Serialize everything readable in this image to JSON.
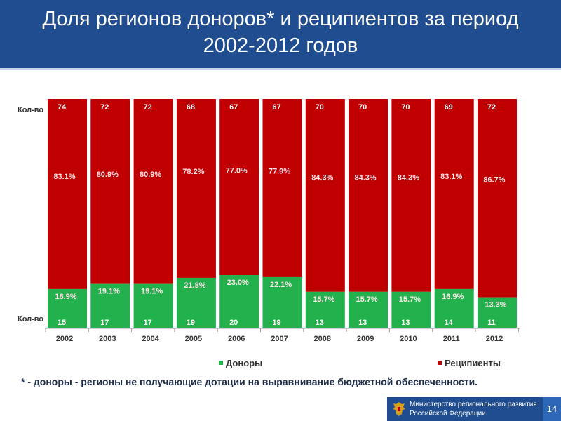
{
  "slide": {
    "title_line1": "Доля регионов доноров* и реципиентов за период",
    "title_line2": "2002-2012 годов",
    "count_label_top": "Кол-во",
    "count_label_bottom": "Кол-во",
    "footnote": "* - доноры - регионы не получающие дотации на выравнивание бюджетной обеспеченности.",
    "ministry_line1": "Министерство регионального развития",
    "ministry_line2": "Российской Федерации",
    "page_number": "14"
  },
  "colors": {
    "header_bg": "#1f4d8f",
    "donors": "#22b14c",
    "recipients": "#c00000",
    "label_text": "#ffe6ec"
  },
  "chart_data": {
    "type": "bar",
    "stacked": true,
    "categories": [
      "2002",
      "2003",
      "2004",
      "2005",
      "2006",
      "2007",
      "2008",
      "2009",
      "2010",
      "2011",
      "2012"
    ],
    "series": [
      {
        "name": "Доноры",
        "values": [
          16.9,
          19.1,
          19.1,
          21.8,
          23.0,
          22.1,
          15.7,
          15.7,
          15.7,
          16.9,
          13.3
        ],
        "labels": [
          "16.9%",
          "19.1%",
          "19.1%",
          "21.8%",
          "23.0%",
          "22.1%",
          "15.7%",
          "15.7%",
          "15.7%",
          "16.9%",
          "13.3%"
        ],
        "counts": [
          "15",
          "17",
          "17",
          "19",
          "20",
          "19",
          "13",
          "13",
          "13",
          "14",
          "11"
        ]
      },
      {
        "name": "Реципиенты",
        "values": [
          83.1,
          80.9,
          80.9,
          78.2,
          77.0,
          77.9,
          84.3,
          84.3,
          84.3,
          83.1,
          86.7
        ],
        "labels": [
          "83.1%",
          "80.9%",
          "80.9%",
          "78.2%",
          "77.0%",
          "77.9%",
          "84.3%",
          "84.3%",
          "84.3%",
          "83.1%",
          "86.7%"
        ],
        "counts": [
          "74",
          "72",
          "72",
          "68",
          "67",
          "67",
          "70",
          "70",
          "70",
          "69",
          "72"
        ]
      }
    ],
    "ylim": [
      0,
      100
    ],
    "grid": false,
    "legend": "bottom"
  }
}
